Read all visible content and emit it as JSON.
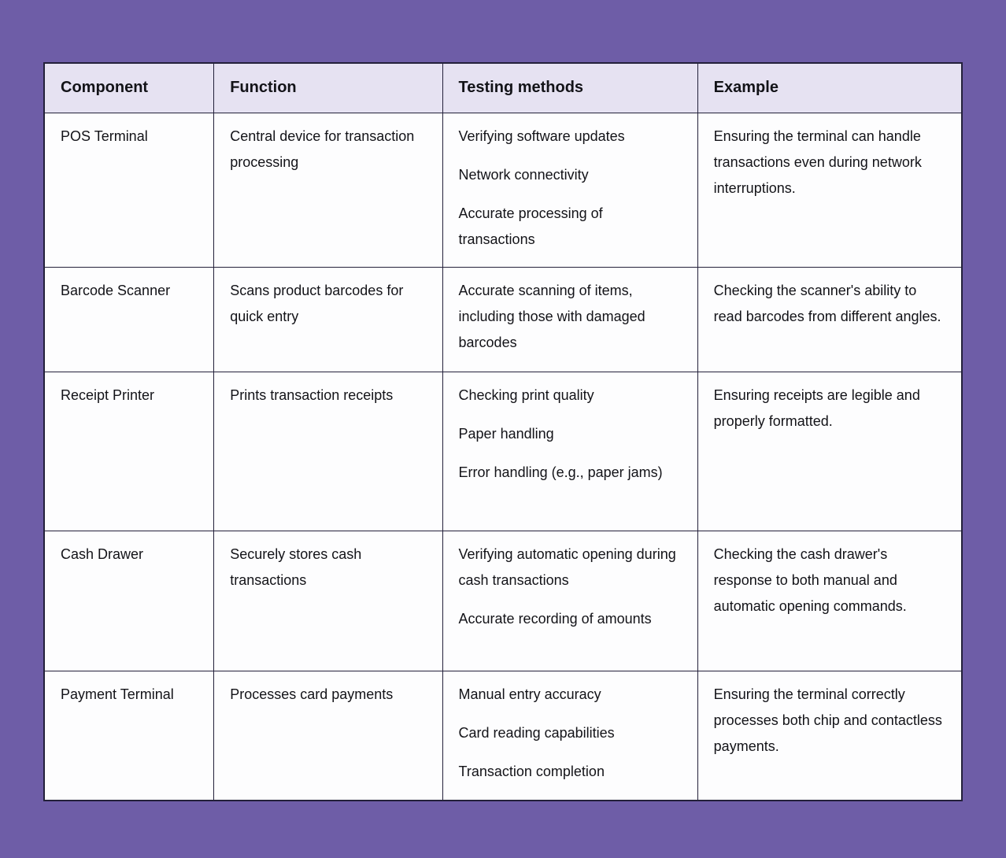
{
  "colors": {
    "background_purple": "#6e5da7",
    "header_background": "#e6e2f2",
    "cell_background": "#fdfdfe",
    "border": "#23203a",
    "text": "#131318"
  },
  "table": {
    "headers": [
      "Component",
      "Function",
      "Testing methods",
      "Example"
    ],
    "rows": [
      {
        "component": [
          "POS Terminal"
        ],
        "function": [
          "Central device for transaction processing"
        ],
        "testing_methods": [
          "Verifying software updates",
          "Network connectivity",
          "Accurate processing of transactions"
        ],
        "example": [
          "Ensuring the terminal can handle transactions even during network interruptions."
        ]
      },
      {
        "component": [
          "Barcode Scanner"
        ],
        "function": [
          "Scans product barcodes for quick entry"
        ],
        "testing_methods": [
          "Accurate scanning of items, including those with damaged barcodes"
        ],
        "example": [
          "Checking the scanner's ability to read barcodes from different angles."
        ]
      },
      {
        "component": [
          "Receipt Printer"
        ],
        "function": [
          "Prints transaction receipts"
        ],
        "testing_methods": [
          "Checking print quality",
          "Paper handling",
          "Error handling (e.g., paper jams)"
        ],
        "example": [
          "Ensuring receipts are legible and properly formatted."
        ]
      },
      {
        "component": [
          "Cash Drawer"
        ],
        "function": [
          "Securely stores cash transactions"
        ],
        "testing_methods": [
          "Verifying automatic opening during cash transactions",
          "Accurate recording of amounts"
        ],
        "example": [
          "Checking the cash drawer's response to both manual and automatic opening commands."
        ]
      },
      {
        "component": [
          "Payment Terminal"
        ],
        "function": [
          "Processes card payments"
        ],
        "testing_methods": [
          "Manual entry accuracy",
          "Card reading capabilities",
          "Transaction completion"
        ],
        "example": [
          "Ensuring the terminal correctly processes both chip and contactless payments."
        ]
      }
    ]
  }
}
